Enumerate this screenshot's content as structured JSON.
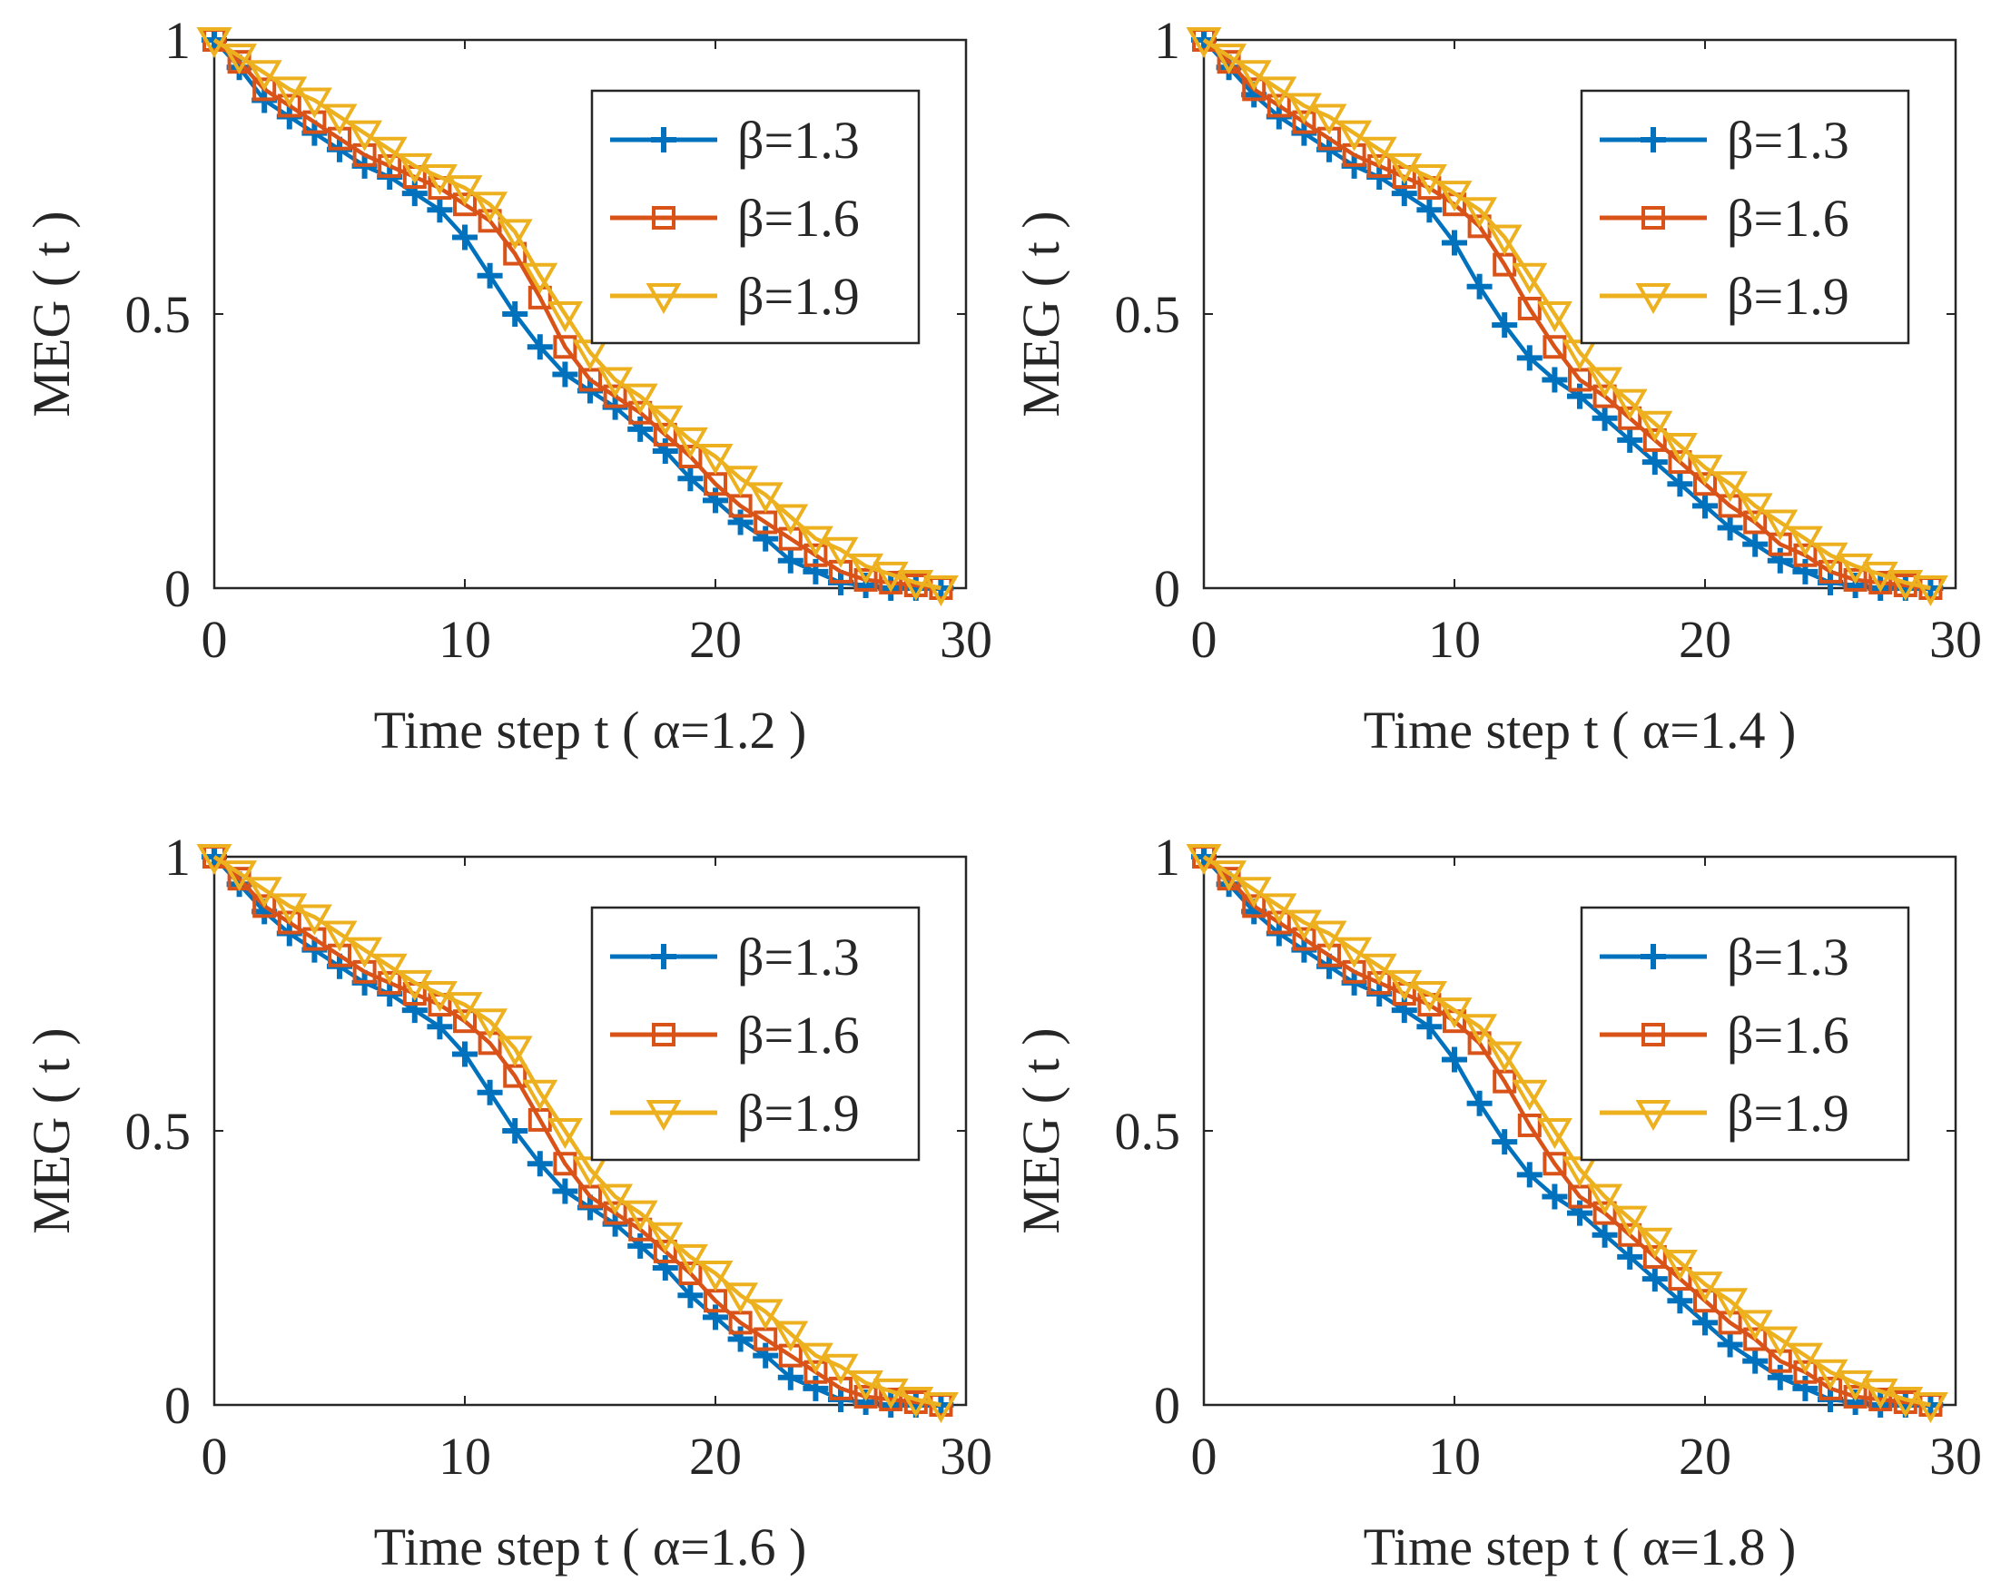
{
  "figure": {
    "background": "#ffffff",
    "series_colors": [
      "#0072BD",
      "#D95319",
      "#EDB120"
    ],
    "series_markers": [
      "plus",
      "square",
      "triangle-down"
    ]
  },
  "chart_data": [
    {
      "type": "line",
      "xlabel": "Time step t ( α=1.2 )",
      "ylabel": "MEG ( t )",
      "xlim": [
        0,
        30
      ],
      "ylim": [
        0,
        1
      ],
      "xticks": [
        "0",
        "10",
        "20",
        "30"
      ],
      "yticks": [
        "0",
        "0.5",
        "1"
      ],
      "legend": "top-right",
      "x": [
        0,
        1,
        2,
        3,
        4,
        5,
        6,
        7,
        8,
        9,
        10,
        11,
        12,
        13,
        14,
        15,
        16,
        17,
        18,
        19,
        20,
        21,
        22,
        23,
        24,
        25,
        26,
        27,
        28,
        29
      ],
      "series": [
        {
          "name": "β=1.3",
          "values": [
            1.0,
            0.95,
            0.89,
            0.86,
            0.83,
            0.8,
            0.77,
            0.75,
            0.72,
            0.69,
            0.64,
            0.57,
            0.5,
            0.44,
            0.39,
            0.36,
            0.33,
            0.29,
            0.25,
            0.2,
            0.16,
            0.12,
            0.09,
            0.05,
            0.03,
            0.01,
            0.005,
            0.0,
            0.0,
            0.0
          ]
        },
        {
          "name": "β=1.6",
          "values": [
            1.0,
            0.96,
            0.91,
            0.88,
            0.85,
            0.82,
            0.79,
            0.77,
            0.75,
            0.73,
            0.7,
            0.67,
            0.61,
            0.53,
            0.44,
            0.38,
            0.35,
            0.32,
            0.28,
            0.24,
            0.19,
            0.15,
            0.12,
            0.09,
            0.06,
            0.03,
            0.015,
            0.01,
            0.005,
            0.0
          ]
        },
        {
          "name": "β=1.9",
          "values": [
            1.0,
            0.97,
            0.94,
            0.91,
            0.89,
            0.86,
            0.83,
            0.8,
            0.77,
            0.75,
            0.73,
            0.7,
            0.65,
            0.57,
            0.5,
            0.43,
            0.38,
            0.35,
            0.31,
            0.27,
            0.24,
            0.2,
            0.17,
            0.13,
            0.09,
            0.07,
            0.04,
            0.025,
            0.01,
            0.0
          ]
        }
      ]
    },
    {
      "type": "line",
      "xlabel": "Time step t ( α=1.4 )",
      "ylabel": "MEG ( t )",
      "xlim": [
        0,
        30
      ],
      "ylim": [
        0,
        1
      ],
      "xticks": [
        "0",
        "10",
        "20",
        "30"
      ],
      "yticks": [
        "0",
        "0.5",
        "1"
      ],
      "legend": "top-right",
      "x": [
        0,
        1,
        2,
        3,
        4,
        5,
        6,
        7,
        8,
        9,
        10,
        11,
        12,
        13,
        14,
        15,
        16,
        17,
        18,
        19,
        20,
        21,
        22,
        23,
        24,
        25,
        26,
        27,
        28,
        29
      ],
      "series": [
        {
          "name": "β=1.3",
          "values": [
            1.0,
            0.95,
            0.9,
            0.86,
            0.83,
            0.8,
            0.77,
            0.75,
            0.72,
            0.69,
            0.63,
            0.55,
            0.48,
            0.42,
            0.38,
            0.35,
            0.31,
            0.27,
            0.23,
            0.19,
            0.15,
            0.11,
            0.08,
            0.05,
            0.03,
            0.01,
            0.005,
            0.0,
            0.0,
            0.0
          ]
        },
        {
          "name": "β=1.6",
          "values": [
            1.0,
            0.96,
            0.91,
            0.88,
            0.85,
            0.82,
            0.79,
            0.77,
            0.75,
            0.73,
            0.7,
            0.66,
            0.59,
            0.51,
            0.44,
            0.38,
            0.35,
            0.31,
            0.27,
            0.23,
            0.19,
            0.15,
            0.12,
            0.08,
            0.06,
            0.03,
            0.015,
            0.01,
            0.005,
            0.0
          ]
        },
        {
          "name": "β=1.9",
          "values": [
            1.0,
            0.97,
            0.94,
            0.91,
            0.88,
            0.86,
            0.83,
            0.8,
            0.77,
            0.75,
            0.72,
            0.69,
            0.64,
            0.57,
            0.5,
            0.43,
            0.38,
            0.34,
            0.3,
            0.26,
            0.22,
            0.19,
            0.15,
            0.12,
            0.09,
            0.06,
            0.04,
            0.025,
            0.01,
            0.0
          ]
        }
      ]
    },
    {
      "type": "line",
      "xlabel": "Time step t ( α=1.6 )",
      "ylabel": "MEG ( t )",
      "xlim": [
        0,
        30
      ],
      "ylim": [
        0,
        1
      ],
      "xticks": [
        "0",
        "10",
        "20",
        "30"
      ],
      "yticks": [
        "0",
        "0.5",
        "1"
      ],
      "legend": "top-right",
      "x": [
        0,
        1,
        2,
        3,
        4,
        5,
        6,
        7,
        8,
        9,
        10,
        11,
        12,
        13,
        14,
        15,
        16,
        17,
        18,
        19,
        20,
        21,
        22,
        23,
        24,
        25,
        26,
        27,
        28,
        29
      ],
      "series": [
        {
          "name": "β=1.3",
          "values": [
            1.0,
            0.95,
            0.9,
            0.86,
            0.83,
            0.8,
            0.77,
            0.75,
            0.72,
            0.69,
            0.64,
            0.57,
            0.5,
            0.44,
            0.39,
            0.36,
            0.33,
            0.29,
            0.25,
            0.2,
            0.16,
            0.12,
            0.09,
            0.05,
            0.03,
            0.01,
            0.005,
            0.0,
            0.0,
            0.0
          ]
        },
        {
          "name": "β=1.6",
          "values": [
            1.0,
            0.96,
            0.91,
            0.88,
            0.85,
            0.82,
            0.79,
            0.77,
            0.75,
            0.73,
            0.7,
            0.66,
            0.6,
            0.52,
            0.44,
            0.38,
            0.35,
            0.32,
            0.28,
            0.24,
            0.19,
            0.15,
            0.12,
            0.09,
            0.06,
            0.03,
            0.015,
            0.01,
            0.005,
            0.0
          ]
        },
        {
          "name": "β=1.9",
          "values": [
            1.0,
            0.97,
            0.94,
            0.91,
            0.89,
            0.86,
            0.83,
            0.8,
            0.77,
            0.75,
            0.73,
            0.7,
            0.65,
            0.57,
            0.5,
            0.43,
            0.38,
            0.35,
            0.31,
            0.27,
            0.24,
            0.2,
            0.17,
            0.13,
            0.09,
            0.07,
            0.04,
            0.025,
            0.01,
            0.0
          ]
        }
      ]
    },
    {
      "type": "line",
      "xlabel": "Time step t ( α=1.8 )",
      "ylabel": "MEG ( t )",
      "xlim": [
        0,
        30
      ],
      "ylim": [
        0,
        1
      ],
      "xticks": [
        "0",
        "10",
        "20",
        "30"
      ],
      "yticks": [
        "0",
        "0.5",
        "1"
      ],
      "legend": "top-right",
      "x": [
        0,
        1,
        2,
        3,
        4,
        5,
        6,
        7,
        8,
        9,
        10,
        11,
        12,
        13,
        14,
        15,
        16,
        17,
        18,
        19,
        20,
        21,
        22,
        23,
        24,
        25,
        26,
        27,
        28,
        29
      ],
      "series": [
        {
          "name": "β=1.3",
          "values": [
            1.0,
            0.95,
            0.9,
            0.86,
            0.83,
            0.8,
            0.77,
            0.75,
            0.72,
            0.69,
            0.63,
            0.55,
            0.48,
            0.42,
            0.38,
            0.35,
            0.31,
            0.27,
            0.23,
            0.19,
            0.15,
            0.11,
            0.08,
            0.05,
            0.03,
            0.01,
            0.005,
            0.0,
            0.0,
            0.0
          ]
        },
        {
          "name": "β=1.6",
          "values": [
            1.0,
            0.96,
            0.91,
            0.88,
            0.85,
            0.82,
            0.79,
            0.77,
            0.75,
            0.73,
            0.7,
            0.66,
            0.59,
            0.51,
            0.44,
            0.38,
            0.35,
            0.31,
            0.27,
            0.23,
            0.19,
            0.15,
            0.12,
            0.08,
            0.06,
            0.03,
            0.015,
            0.01,
            0.005,
            0.0
          ]
        },
        {
          "name": "β=1.9",
          "values": [
            1.0,
            0.97,
            0.94,
            0.91,
            0.88,
            0.86,
            0.83,
            0.8,
            0.77,
            0.75,
            0.72,
            0.69,
            0.64,
            0.57,
            0.5,
            0.43,
            0.38,
            0.34,
            0.3,
            0.26,
            0.22,
            0.19,
            0.15,
            0.12,
            0.09,
            0.06,
            0.04,
            0.025,
            0.01,
            0.0
          ]
        }
      ]
    }
  ]
}
